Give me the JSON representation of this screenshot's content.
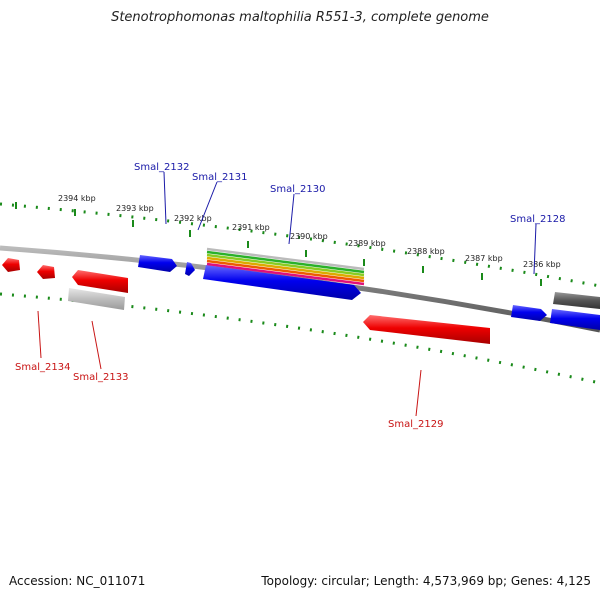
{
  "title": "Stenotrophomonas maltophilia R551-3, complete genome",
  "footer": {
    "accession": "Accession: NC_011071",
    "summary": "Topology: circular; Length: 4,573,969 bp; Genes: 4,125"
  },
  "colors": {
    "forward_gene": "#0000ee",
    "reverse_gene": "#ee0000",
    "other_gene": "#bbbbbb",
    "backbone": "#888888",
    "ticks": "#1a8a1a",
    "label_blue": "#1a1aa8",
    "label_red": "#c81414"
  },
  "kbp_labels": [
    "2394 kbp",
    "2393 kbp",
    "2392 kbp",
    "2391 kbp",
    "2390 kbp",
    "2389 kbp",
    "2388 kbp",
    "2387 kbp",
    "2386 kbp"
  ],
  "gene_labels": {
    "forward": [
      "Smal_2132",
      "Smal_2131",
      "Smal_2130",
      "Smal_2128"
    ],
    "reverse": [
      "Smal_2134",
      "Smal_2133",
      "Smal_2129"
    ]
  }
}
